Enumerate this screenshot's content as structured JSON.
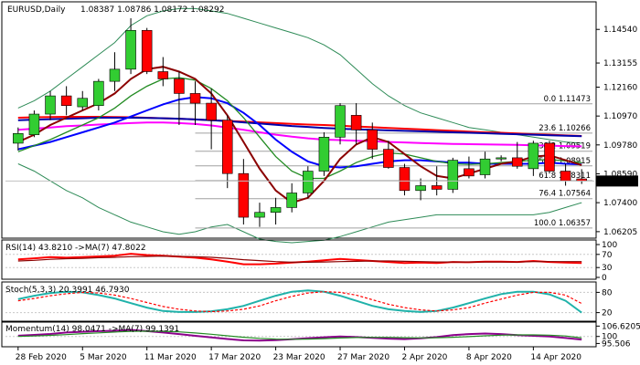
{
  "chart_data": [
    {
      "type": "candlestick",
      "title": "EURUSD,Daily",
      "ohlc_header": "1.08387 1.08786 1.08172 1.08292",
      "y_ticks": [
        "1.14540",
        "1.13155",
        "1.12160",
        "1.10970",
        "1.09780",
        "1.08590",
        "1.07400",
        "1.06205"
      ],
      "y_range": [
        1.0605,
        1.1515
      ],
      "current_price_label": "1.08292",
      "current_price": 1.08292,
      "x_labels": [
        "28 Feb 2020",
        "5 Mar 2020",
        "11 Mar 2020",
        "17 Mar 2020",
        "23 Mar 2020",
        "27 Mar 2020",
        "2 Apr 2020",
        "8 Apr 2020",
        "14 Apr 2020"
      ],
      "x_label_index": [
        0,
        4,
        8,
        12,
        16,
        20,
        24,
        28,
        32
      ],
      "candles": [
        {
          "o": 1.0985,
          "h": 1.105,
          "l": 1.0955,
          "c": 1.1025
        },
        {
          "o": 1.102,
          "h": 1.112,
          "l": 1.101,
          "c": 1.1105
        },
        {
          "o": 1.1105,
          "h": 1.12,
          "l": 1.108,
          "c": 1.118
        },
        {
          "o": 1.118,
          "h": 1.122,
          "l": 1.11,
          "c": 1.114
        },
        {
          "o": 1.1135,
          "h": 1.12,
          "l": 1.112,
          "c": 1.117
        },
        {
          "o": 1.114,
          "h": 1.125,
          "l": 1.112,
          "c": 1.124
        },
        {
          "o": 1.124,
          "h": 1.136,
          "l": 1.12,
          "c": 1.129
        },
        {
          "o": 1.129,
          "h": 1.15,
          "l": 1.127,
          "c": 1.145
        },
        {
          "o": 1.145,
          "h": 1.146,
          "l": 1.127,
          "c": 1.128
        },
        {
          "o": 1.128,
          "h": 1.134,
          "l": 1.122,
          "c": 1.125
        },
        {
          "o": 1.125,
          "h": 1.128,
          "l": 1.106,
          "c": 1.119
        },
        {
          "o": 1.119,
          "h": 1.124,
          "l": 1.106,
          "c": 1.115
        },
        {
          "o": 1.115,
          "h": 1.121,
          "l": 1.096,
          "c": 1.108
        },
        {
          "o": 1.108,
          "h": 1.11,
          "l": 1.08,
          "c": 1.086
        },
        {
          "o": 1.086,
          "h": 1.092,
          "l": 1.065,
          "c": 1.068
        },
        {
          "o": 1.068,
          "h": 1.074,
          "l": 1.064,
          "c": 1.07
        },
        {
          "o": 1.07,
          "h": 1.076,
          "l": 1.065,
          "c": 1.072
        },
        {
          "o": 1.072,
          "h": 1.082,
          "l": 1.07,
          "c": 1.078
        },
        {
          "o": 1.078,
          "h": 1.089,
          "l": 1.076,
          "c": 1.087
        },
        {
          "o": 1.087,
          "h": 1.103,
          "l": 1.085,
          "c": 1.101
        },
        {
          "o": 1.101,
          "h": 1.115,
          "l": 1.098,
          "c": 1.114
        },
        {
          "o": 1.11,
          "h": 1.115,
          "l": 1.098,
          "c": 1.104
        },
        {
          "o": 1.104,
          "h": 1.107,
          "l": 1.092,
          "c": 1.096
        },
        {
          "o": 1.096,
          "h": 1.0995,
          "l": 1.088,
          "c": 1.0885
        },
        {
          "o": 1.0885,
          "h": 1.09,
          "l": 1.077,
          "c": 1.079
        },
        {
          "o": 1.079,
          "h": 1.084,
          "l": 1.075,
          "c": 1.081
        },
        {
          "o": 1.081,
          "h": 1.089,
          "l": 1.077,
          "c": 1.0795
        },
        {
          "o": 1.0795,
          "h": 1.0925,
          "l": 1.078,
          "c": 1.0915
        },
        {
          "o": 1.088,
          "h": 1.093,
          "l": 1.084,
          "c": 1.085
        },
        {
          "o": 1.0855,
          "h": 1.095,
          "l": 1.084,
          "c": 1.092
        },
        {
          "o": 1.092,
          "h": 1.0935,
          "l": 1.091,
          "c": 1.0925
        },
        {
          "o": 1.0925,
          "h": 1.099,
          "l": 1.088,
          "c": 1.089
        },
        {
          "o": 1.088,
          "h": 1.0995,
          "l": 1.085,
          "c": 1.0985
        },
        {
          "o": 1.0985,
          "h": 1.0995,
          "l": 1.086,
          "c": 1.087
        },
        {
          "o": 1.087,
          "h": 1.09,
          "l": 1.081,
          "c": 1.083
        },
        {
          "o": 1.0838,
          "h": 1.0878,
          "l": 1.0817,
          "c": 1.0829
        }
      ],
      "colors": {
        "bull": "#32cd32",
        "bear": "#ff0000",
        "wick": "#000000",
        "fib_line": "#a0a0a0",
        "ma_fast": "#8b0000",
        "ma_mid": "#228b22",
        "ma_slow": "#0000ff",
        "ma_long": "#ff0000",
        "ma_long2": "#ff00ff",
        "ma_long3": "#0000aa",
        "bollinger": "#2e8b57"
      },
      "fib_levels": [
        {
          "label": "0.0 1.11473",
          "value": 1.11473
        },
        {
          "label": "23.6 1.10266",
          "value": 1.10266
        },
        {
          "label": "38.2 1.09519",
          "value": 1.09519
        },
        {
          "label": "50.0 1.08915",
          "value": 1.08915
        },
        {
          "label": "61.8 1.08311",
          "value": 1.08311
        },
        {
          "label": "76.4 1.07564",
          "value": 1.07564
        },
        {
          "label": "100.0 1.06357",
          "value": 1.06357
        }
      ],
      "ma_series": {
        "fast": [
          1.099,
          1.102,
          1.106,
          1.109,
          1.112,
          1.115,
          1.119,
          1.125,
          1.129,
          1.13,
          1.128,
          1.125,
          1.119,
          1.11,
          1.099,
          1.088,
          1.079,
          1.074,
          1.076,
          1.083,
          1.092,
          1.098,
          1.101,
          1.099,
          1.094,
          1.089,
          1.085,
          1.084,
          1.086,
          1.088,
          1.09,
          1.091,
          1.093,
          1.0935,
          1.0915,
          1.0895
        ],
        "mid": [
          1.095,
          1.0975,
          1.1,
          1.103,
          1.106,
          1.109,
          1.113,
          1.118,
          1.122,
          1.125,
          1.1255,
          1.1245,
          1.121,
          1.116,
          1.109,
          1.101,
          1.093,
          1.087,
          1.084,
          1.084,
          1.087,
          1.0905,
          1.093,
          1.0945,
          1.094,
          1.0925,
          1.091,
          1.09,
          1.0898,
          1.09,
          1.0905,
          1.091,
          1.0915,
          1.0918,
          1.0912,
          1.0905
        ],
        "slow": [
          1.096,
          1.0975,
          1.099,
          1.101,
          1.103,
          1.105,
          1.107,
          1.1095,
          1.112,
          1.1145,
          1.1165,
          1.1175,
          1.117,
          1.115,
          1.111,
          1.106,
          1.1,
          1.095,
          1.091,
          1.089,
          1.0885,
          1.089,
          1.09,
          1.091,
          1.0915,
          1.0915,
          1.091,
          1.0905,
          1.0905,
          1.09,
          1.09,
          1.09,
          1.09,
          1.0905,
          1.09,
          1.0898
        ],
        "long_red": [
          1.109,
          1.1092,
          1.1093,
          1.1094,
          1.1094,
          1.1094,
          1.1093,
          1.1092,
          1.109,
          1.1088,
          1.1086,
          1.1083,
          1.108,
          1.1077,
          1.1074,
          1.1071,
          1.1068,
          1.1065,
          1.1062,
          1.106,
          1.1057,
          1.1054,
          1.1051,
          1.1048,
          1.1045,
          1.1042,
          1.1039,
          1.1036,
          1.1033,
          1.103,
          1.1028,
          1.1025,
          1.1022,
          1.102,
          1.1017,
          1.1015
        ],
        "long_magenta": [
          1.104,
          1.1045,
          1.105,
          1.1055,
          1.1058,
          1.1062,
          1.1065,
          1.1068,
          1.107,
          1.107,
          1.1068,
          1.1064,
          1.1058,
          1.105,
          1.104,
          1.103,
          1.102,
          1.1012,
          1.1005,
          1.1,
          1.0998,
          1.0995,
          1.0993,
          1.099,
          1.0988,
          1.0986,
          1.0984,
          1.0982,
          1.0981,
          1.098,
          1.0979,
          1.0978,
          1.0976,
          1.0975,
          1.0973,
          1.0972
        ],
        "long_navy": [
          1.108,
          1.1082,
          1.1084,
          1.1086,
          1.1088,
          1.109,
          1.109,
          1.109,
          1.1089,
          1.1088,
          1.1086,
          1.1083,
          1.108,
          1.1076,
          1.1071,
          1.1066,
          1.1061,
          1.1056,
          1.1052,
          1.1048,
          1.1045,
          1.1042,
          1.104,
          1.1038,
          1.1036,
          1.1034,
          1.1032,
          1.103,
          1.1028,
          1.1026,
          1.1024,
          1.1022,
          1.102,
          1.1018,
          1.1016,
          1.1014
        ]
      },
      "bollinger": {
        "upper": [
          1.113,
          1.116,
          1.12,
          1.125,
          1.13,
          1.135,
          1.14,
          1.147,
          1.151,
          1.153,
          1.154,
          1.154,
          1.153,
          1.152,
          1.15,
          1.148,
          1.146,
          1.144,
          1.142,
          1.139,
          1.135,
          1.129,
          1.123,
          1.118,
          1.114,
          1.111,
          1.109,
          1.107,
          1.105,
          1.104,
          1.103,
          1.102,
          1.101,
          1.1,
          1.099,
          1.0985
        ],
        "lower": [
          1.09,
          1.087,
          1.083,
          1.079,
          1.076,
          1.072,
          1.069,
          1.066,
          1.064,
          1.062,
          1.061,
          1.062,
          1.064,
          1.065,
          1.062,
          1.059,
          1.058,
          1.0575,
          1.058,
          1.0585,
          1.06,
          1.062,
          1.064,
          1.066,
          1.067,
          1.068,
          1.069,
          1.069,
          1.069,
          1.069,
          1.069,
          1.069,
          1.069,
          1.07,
          1.072,
          1.074
        ]
      }
    },
    {
      "type": "line",
      "title": "RSI(14) 43.8210 ->MA(7) 47.8022",
      "y_ticks": [
        "100",
        "70",
        "30",
        "0"
      ],
      "y_range": [
        0,
        100
      ],
      "series": [
        {
          "color": "#ff0000",
          "values": [
            55,
            58,
            62,
            60,
            62,
            64,
            66,
            72,
            68,
            66,
            63,
            60,
            55,
            48,
            40,
            40,
            42,
            45,
            48,
            52,
            56,
            53,
            50,
            47,
            44,
            45,
            44,
            47,
            46,
            48,
            48,
            47,
            50,
            47,
            45,
            44
          ]
        },
        {
          "color": "#8b0000",
          "values": [
            50,
            52,
            55,
            57,
            58,
            60,
            61,
            63,
            64,
            65,
            64,
            63,
            61,
            58,
            54,
            51,
            48,
            46,
            46,
            47,
            48,
            49,
            50,
            50,
            49,
            48,
            47,
            47,
            47,
            47,
            47,
            47,
            48,
            48,
            48,
            48
          ]
        }
      ]
    },
    {
      "type": "line",
      "title": "Stoch(5,3,3) 20.3991 46.7930",
      "y_ticks": [
        "80",
        "20"
      ],
      "y_range": [
        0,
        100
      ],
      "series": [
        {
          "color": "#20b2aa",
          "values": [
            60,
            70,
            78,
            82,
            80,
            72,
            62,
            48,
            35,
            25,
            22,
            22,
            24,
            30,
            40,
            55,
            70,
            82,
            86,
            82,
            70,
            55,
            40,
            30,
            25,
            22,
            25,
            35,
            48,
            62,
            75,
            82,
            82,
            74,
            55,
            20
          ]
        },
        {
          "color": "#ff0000",
          "values": [
            55,
            62,
            70,
            76,
            80,
            78,
            72,
            62,
            50,
            38,
            30,
            25,
            23,
            25,
            30,
            40,
            55,
            68,
            78,
            82,
            80,
            72,
            58,
            45,
            35,
            28,
            25,
            28,
            35,
            48,
            60,
            72,
            80,
            80,
            72,
            47
          ]
        }
      ]
    },
    {
      "type": "line",
      "title": "Momentum(14) 98.0471 ->MA(7) 99.1391",
      "y_ticks": [
        "106.6205",
        "100",
        "95.506"
      ],
      "y_range": [
        94.0,
        108.0
      ],
      "series": [
        {
          "color": "#8b008b",
          "values": [
            100.5,
            101.0,
            101.6,
            102.5,
            103.0,
            103.4,
            103.6,
            104.2,
            103.4,
            102.5,
            101.5,
            100.4,
            99.4,
            98.4,
            97.5,
            97.3,
            97.6,
            98.2,
            98.9,
            99.5,
            100.0,
            99.6,
            99.1,
            98.6,
            98.3,
            98.8,
            99.6,
            100.8,
            101.5,
            101.9,
            101.5,
            100.8,
            100.4,
            100.0,
            99.0,
            98.0
          ]
        },
        {
          "color": "#228b22",
          "values": [
            100.0,
            100.3,
            100.7,
            101.2,
            101.8,
            102.3,
            102.8,
            103.3,
            103.4,
            103.3,
            102.9,
            102.2,
            101.4,
            100.4,
            99.5,
            98.8,
            98.3,
            98.2,
            98.3,
            98.6,
            99.0,
            99.3,
            99.4,
            99.4,
            99.2,
            99.1,
            99.2,
            99.5,
            99.9,
            100.4,
            100.8,
            101.0,
            101.0,
            100.8,
            100.3,
            99.1
          ]
        }
      ]
    }
  ]
}
